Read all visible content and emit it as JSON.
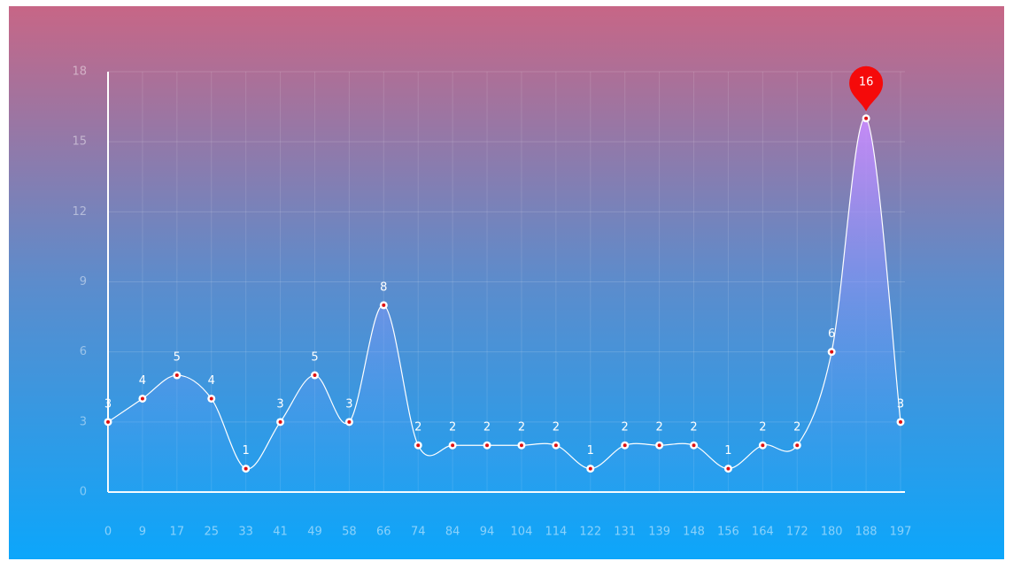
{
  "chart_data": {
    "type": "line",
    "categories": [
      "0",
      "9",
      "17",
      "25",
      "33",
      "41",
      "49",
      "58",
      "66",
      "74",
      "84",
      "94",
      "104",
      "114",
      "122",
      "131",
      "139",
      "148",
      "156",
      "164",
      "172",
      "180",
      "188",
      "197"
    ],
    "series": [
      {
        "color": "#ffffff",
        "marker_color": "#e01010",
        "values": [
          3,
          4,
          5,
          4,
          1,
          3,
          5,
          3,
          8,
          2,
          2,
          2,
          2,
          2,
          1,
          2,
          2,
          2,
          1,
          2,
          2,
          6,
          16,
          3
        ]
      }
    ],
    "ylim": [
      0,
      18
    ],
    "yticks": [
      0,
      3,
      6,
      9,
      12,
      15,
      18
    ],
    "grid": true,
    "smooth": true,
    "max_pin_color": "#f50a0a"
  }
}
